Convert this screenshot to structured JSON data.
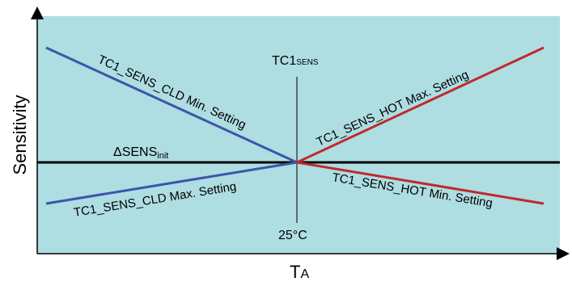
{
  "diagram": {
    "y_axis_label": "Sensitivity",
    "x_axis_label_main": "T",
    "x_axis_label_sub": "A",
    "center_top_label_main": "TC1",
    "center_top_label_sub": "SENS",
    "center_bottom_label": "25°C",
    "baseline_label_main": "ΔSENS",
    "baseline_label_sub": "init",
    "line_labels": {
      "cld_min": "TC1_SENS_CLD Min. Setting",
      "cld_max": "TC1_SENS_CLD Max. Setting",
      "hot_max": "TC1_SENS_HOT Max. Setting",
      "hot_min": "TC1_SENS_HOT Min. Setting"
    },
    "colors": {
      "plot_background": "#aedde2",
      "blue_line": "#3d55a8",
      "red_line": "#c0292d",
      "baseline": "#000000"
    }
  }
}
